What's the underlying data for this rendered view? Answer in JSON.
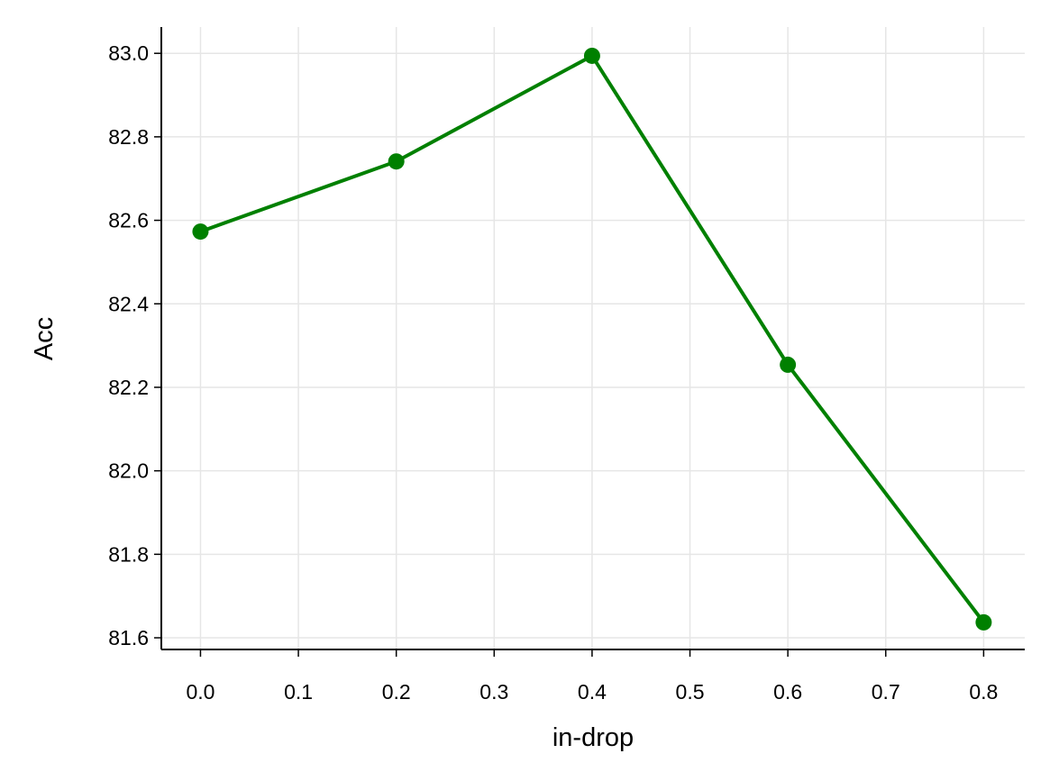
{
  "chart_data": {
    "type": "line",
    "x_label": "in-drop",
    "y_label": "Acc",
    "x": [
      0.0,
      0.2,
      0.4,
      0.6,
      0.8
    ],
    "series": [
      {
        "color": "#008000",
        "values": [
          82.573,
          82.741,
          82.994,
          82.254,
          81.637
        ]
      }
    ],
    "xlim": [
      -0.04,
      0.842
    ],
    "ylim": [
      81.572,
      83.063
    ],
    "xticks": [
      {
        "value": 0,
        "label": "0.0"
      },
      0.1,
      0.2,
      0.3,
      0.4,
      0.5,
      0.6,
      0.7,
      0.8
    ],
    "yticks": [
      81.6,
      81.8,
      {
        "value": 82,
        "label": "82.0"
      },
      82.2,
      82.4,
      82.6,
      82.8,
      {
        "value": 83,
        "label": "83.0"
      }
    ],
    "grid": true
  }
}
